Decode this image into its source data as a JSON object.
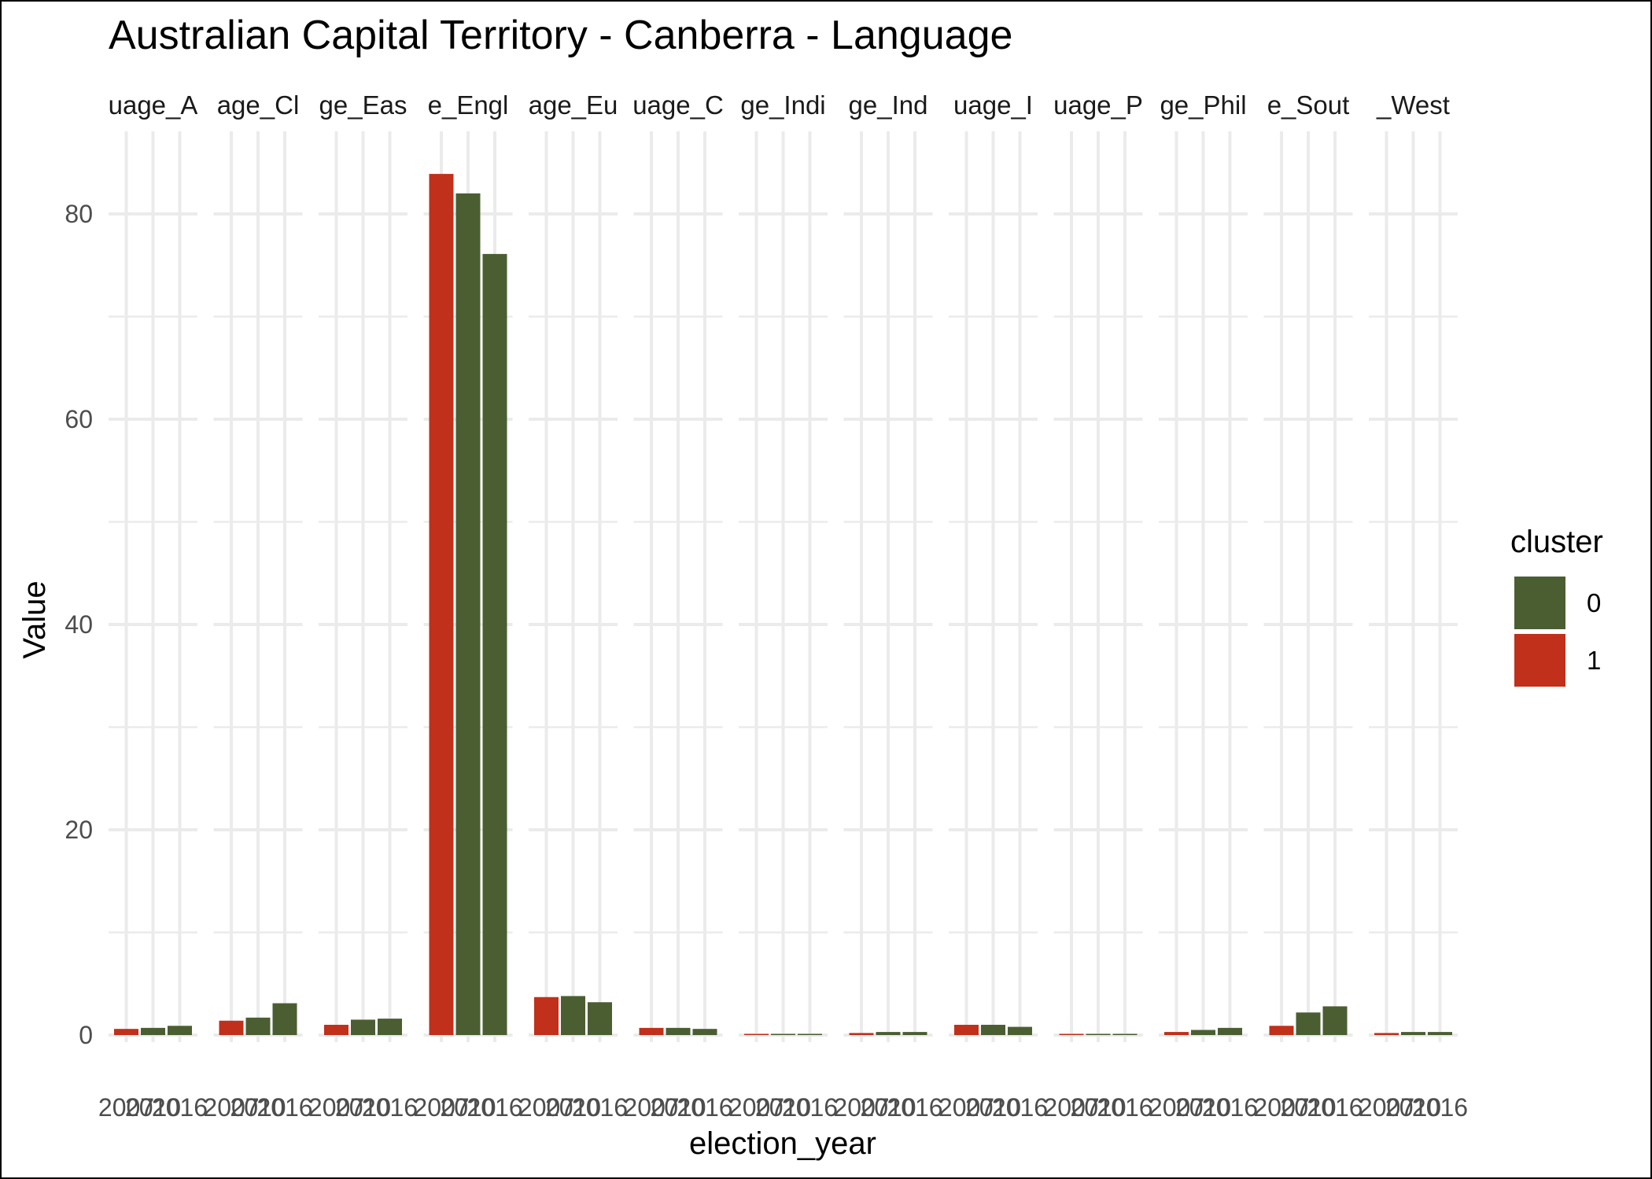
{
  "chart_data": {
    "type": "bar",
    "title": "Australian Capital Territory - Canberra - Language",
    "xlabel": "election_year",
    "ylabel": "Value",
    "ylim": [
      0,
      88
    ],
    "y_ticks": [
      0,
      20,
      40,
      60,
      80
    ],
    "facet_labels": [
      "uage_A",
      "age_Cl",
      "ge_Eas",
      "e_Engl",
      "age_Eu",
      "uage_C",
      "ge_Indi",
      "ge_Ind",
      "uage_I",
      "uage_P",
      "ge_Phil",
      "e_Sout",
      "_West"
    ],
    "x_categories": [
      "2007",
      "2010",
      "2016"
    ],
    "legend": {
      "title": "cluster",
      "position": "right",
      "entries": [
        {
          "label": "0",
          "color": "#4a5e32"
        },
        {
          "label": "1",
          "color": "#c0301a"
        }
      ]
    },
    "colors": {
      "0": "#4a5e32",
      "1": "#c0301a"
    },
    "clusters": [
      "1",
      "0",
      "0"
    ],
    "values": [
      [
        0.6,
        0.7,
        0.9
      ],
      [
        1.4,
        1.7,
        3.1
      ],
      [
        1.0,
        1.5,
        1.6
      ],
      [
        83.9,
        82.0,
        76.1
      ],
      [
        3.7,
        3.8,
        3.2
      ],
      [
        0.7,
        0.7,
        0.6
      ],
      [
        0.1,
        0.1,
        0.1
      ],
      [
        0.2,
        0.3,
        0.3
      ],
      [
        1.0,
        1.0,
        0.8
      ],
      [
        0.1,
        0.1,
        0.1
      ],
      [
        0.3,
        0.5,
        0.7
      ],
      [
        0.9,
        2.2,
        2.8
      ],
      [
        0.2,
        0.3,
        0.3
      ]
    ],
    "grid": true
  }
}
